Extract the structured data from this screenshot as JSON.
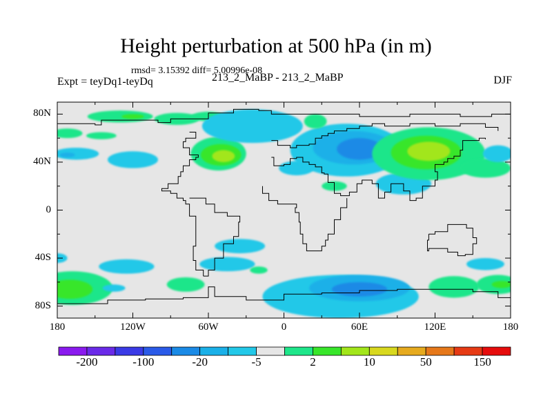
{
  "title": "Height perturbation at 500 hPa (in m)",
  "stats_line": "rmsd= 3.15392 diff= 5.00996e-08",
  "left_label": "Expt = teyDq1-teyDq",
  "center_label": "213_2_MaBP - 213_2_MaBP",
  "right_label": "DJF",
  "colors": {
    "background_fill": "#e6e6e6",
    "coastline": "#000000",
    "levels": [
      "#8a1aee",
      "#6a2ae8",
      "#3a3ae6",
      "#2a5ae8",
      "#1a8ae6",
      "#1ab0e8",
      "#22c8e8",
      "#e6e6e6",
      "#1ee68a",
      "#38e62a",
      "#a2e61a",
      "#d8d81e",
      "#e6aa1e",
      "#e6781a",
      "#e63a14",
      "#e60c0c"
    ]
  },
  "chart_data": {
    "type": "contour_map",
    "title": "Height perturbation at 500 hPa (in m)",
    "projection": "cylindrical equidistant",
    "xlim": [
      -180,
      180
    ],
    "ylim": [
      -90,
      90
    ],
    "x_ticks": [
      {
        "value": -180,
        "label": "180"
      },
      {
        "value": -120,
        "label": "120W"
      },
      {
        "value": -60,
        "label": "60W"
      },
      {
        "value": 0,
        "label": "0"
      },
      {
        "value": 60,
        "label": "60E"
      },
      {
        "value": 120,
        "label": "120E"
      },
      {
        "value": 180,
        "label": "180"
      }
    ],
    "y_ticks": [
      {
        "value": 80,
        "label": "80N"
      },
      {
        "value": 40,
        "label": "40N"
      },
      {
        "value": 0,
        "label": "0"
      },
      {
        "value": -40,
        "label": "40S"
      },
      {
        "value": -80,
        "label": "80S"
      }
    ],
    "colorbar": {
      "n_boxes": 16,
      "labels": [
        {
          "boundary": 1,
          "label": "-200"
        },
        {
          "boundary": 3,
          "label": "-100"
        },
        {
          "boundary": 5,
          "label": "-20"
        },
        {
          "boundary": 7,
          "label": "-5"
        },
        {
          "boundary": 9,
          "label": "2"
        },
        {
          "boundary": 11,
          "label": "10"
        },
        {
          "boundary": 13,
          "label": "50"
        },
        {
          "boundary": 15,
          "label": "150"
        }
      ]
    },
    "regions": [
      {
        "sign": "positive",
        "level": 8,
        "lon": -130,
        "lat": 78,
        "rlon": 26,
        "rlat": 5
      },
      {
        "sign": "positive",
        "level": 9,
        "lon": -120,
        "lat": 78,
        "rlon": 9,
        "rlat": 2
      },
      {
        "sign": "positive",
        "level": 8,
        "lon": -85,
        "lat": 76,
        "rlon": 18,
        "rlat": 5
      },
      {
        "sign": "positive",
        "level": 8,
        "lon": -60,
        "lat": 78,
        "rlon": 14,
        "rlat": 4
      },
      {
        "sign": "positive",
        "level": 8,
        "lon": -172,
        "lat": 64,
        "rlon": 12,
        "rlat": 4
      },
      {
        "sign": "positive",
        "level": 8,
        "lon": -145,
        "lat": 62,
        "rlon": 12,
        "rlat": 3
      },
      {
        "sign": "negative",
        "level": 6,
        "lon": -165,
        "lat": 47,
        "rlon": 18,
        "rlat": 5
      },
      {
        "sign": "negative",
        "level": 5,
        "lon": -172,
        "lat": 46,
        "rlon": 6,
        "rlat": 2
      },
      {
        "sign": "negative",
        "level": 6,
        "lon": -120,
        "lat": 42,
        "rlon": 20,
        "rlat": 7
      },
      {
        "sign": "positive",
        "level": 8,
        "lon": -52,
        "lat": 47,
        "rlon": 22,
        "rlat": 14
      },
      {
        "sign": "positive",
        "level": 9,
        "lon": -50,
        "lat": 46,
        "rlon": 16,
        "rlat": 9
      },
      {
        "sign": "positive",
        "level": 10,
        "lon": -48,
        "lat": 45,
        "rlon": 9,
        "rlat": 5
      },
      {
        "sign": "negative",
        "level": 6,
        "lon": -25,
        "lat": 70,
        "rlon": 40,
        "rlat": 14
      },
      {
        "sign": "negative",
        "level": 6,
        "lon": 10,
        "lat": 35,
        "rlon": 14,
        "rlat": 6
      },
      {
        "sign": "negative",
        "level": 6,
        "lon": 50,
        "lat": 50,
        "rlon": 45,
        "rlat": 22
      },
      {
        "sign": "negative",
        "level": 5,
        "lon": 55,
        "lat": 52,
        "rlon": 32,
        "rlat": 14
      },
      {
        "sign": "negative",
        "level": 4,
        "lon": 60,
        "lat": 51,
        "rlon": 18,
        "rlat": 9
      },
      {
        "sign": "negative",
        "level": 6,
        "lon": 95,
        "lat": 22,
        "rlon": 22,
        "rlat": 9
      },
      {
        "sign": "positive",
        "level": 8,
        "lon": 40,
        "lat": 20,
        "rlon": 10,
        "rlat": 4
      },
      {
        "sign": "positive",
        "level": 8,
        "lon": 25,
        "lat": 74,
        "rlon": 9,
        "rlat": 6
      },
      {
        "sign": "positive",
        "level": 8,
        "lon": 115,
        "lat": 47,
        "rlon": 45,
        "rlat": 22
      },
      {
        "sign": "positive",
        "level": 9,
        "lon": 113,
        "lat": 48,
        "rlon": 28,
        "rlat": 14
      },
      {
        "sign": "positive",
        "level": 10,
        "lon": 115,
        "lat": 49,
        "rlon": 17,
        "rlat": 8
      },
      {
        "sign": "positive",
        "level": 8,
        "lon": 160,
        "lat": 35,
        "rlon": 20,
        "rlat": 8
      },
      {
        "sign": "negative",
        "level": 6,
        "lon": 170,
        "lat": 47,
        "rlon": 12,
        "rlat": 7
      },
      {
        "sign": "negative",
        "level": 6,
        "lon": -35,
        "lat": -30,
        "rlon": 20,
        "rlat": 6
      },
      {
        "sign": "negative",
        "level": 6,
        "lon": -180,
        "lat": -40,
        "rlon": 8,
        "rlat": 4
      },
      {
        "sign": "negative",
        "level": 6,
        "lon": -125,
        "lat": -47,
        "rlon": 22,
        "rlat": 6
      },
      {
        "sign": "positive",
        "level": 8,
        "lon": -168,
        "lat": -65,
        "rlon": 32,
        "rlat": 14
      },
      {
        "sign": "positive",
        "level": 9,
        "lon": -170,
        "lat": -66,
        "rlon": 18,
        "rlat": 8
      },
      {
        "sign": "negative",
        "level": 6,
        "lon": -135,
        "lat": -65,
        "rlon": 9,
        "rlat": 3
      },
      {
        "sign": "positive",
        "level": 8,
        "lon": -78,
        "lat": -62,
        "rlon": 15,
        "rlat": 6
      },
      {
        "sign": "negative",
        "level": 6,
        "lon": -45,
        "lat": -45,
        "rlon": 22,
        "rlat": 6
      },
      {
        "sign": "positive",
        "level": 8,
        "lon": -20,
        "lat": -50,
        "rlon": 7,
        "rlat": 3
      },
      {
        "sign": "negative",
        "level": 6,
        "lon": 45,
        "lat": -72,
        "rlon": 62,
        "rlat": 18
      },
      {
        "sign": "negative",
        "level": 5,
        "lon": 60,
        "lat": -65,
        "rlon": 40,
        "rlat": 11
      },
      {
        "sign": "negative",
        "level": 4,
        "lon": 60,
        "lat": -66,
        "rlon": 22,
        "rlat": 6
      },
      {
        "sign": "positive",
        "level": 8,
        "lon": 135,
        "lat": -64,
        "rlon": 20,
        "rlat": 9
      },
      {
        "sign": "negative",
        "level": 6,
        "lon": 160,
        "lat": -45,
        "rlon": 15,
        "rlat": 5
      },
      {
        "sign": "positive",
        "level": 8,
        "lon": 170,
        "lat": -62,
        "rlon": 17,
        "rlat": 8
      },
      {
        "sign": "positive",
        "level": 9,
        "lon": 173,
        "lat": -62,
        "rlon": 8,
        "rlat": 3
      }
    ],
    "coastlines": [
      [
        [
          -180,
          72
        ],
        [
          -165,
          72
        ],
        [
          -150,
          71
        ],
        [
          -145,
          75
        ],
        [
          -120,
          75
        ],
        [
          -100,
          73
        ],
        [
          -90,
          76
        ],
        [
          -70,
          76
        ],
        [
          -60,
          81
        ],
        [
          -40,
          84
        ],
        [
          -20,
          83
        ],
        [
          -10,
          80
        ],
        [
          20,
          80
        ],
        [
          60,
          78
        ],
        [
          100,
          80
        ],
        [
          140,
          78
        ],
        [
          165,
          80
        ],
        [
          180,
          81
        ]
      ],
      [
        [
          -75,
          65
        ],
        [
          -70,
          60
        ],
        [
          -78,
          57
        ],
        [
          -80,
          52
        ],
        [
          -75,
          46
        ],
        [
          -68,
          44
        ],
        [
          -70,
          42
        ],
        [
          -75,
          37
        ],
        [
          -80,
          32
        ],
        [
          -82,
          28
        ],
        [
          -84,
          22
        ],
        [
          -92,
          18
        ],
        [
          -97,
          16
        ],
        [
          -90,
          14
        ],
        [
          -85,
          10
        ],
        [
          -80,
          8
        ],
        [
          -78,
          5
        ],
        [
          -75,
          -5
        ],
        [
          -70,
          -20
        ],
        [
          -70,
          -30
        ],
        [
          -72,
          -42
        ],
        [
          -70,
          -50
        ],
        [
          -64,
          -55
        ]
      ],
      [
        [
          -64,
          -55
        ],
        [
          -60,
          -50
        ],
        [
          -55,
          -40
        ],
        [
          -48,
          -28
        ],
        [
          -40,
          -22
        ],
        [
          -36,
          -10
        ],
        [
          -35,
          -5
        ],
        [
          -45,
          -2
        ],
        [
          -55,
          5
        ],
        [
          -62,
          10
        ],
        [
          -75,
          10
        ]
      ],
      [
        [
          -10,
          58
        ],
        [
          -5,
          54
        ],
        [
          5,
          52
        ],
        [
          10,
          54
        ],
        [
          20,
          55
        ],
        [
          25,
          60
        ],
        [
          30,
          62
        ],
        [
          35,
          64
        ],
        [
          40,
          66
        ],
        [
          50,
          68
        ],
        [
          60,
          70
        ],
        [
          70,
          72
        ],
        [
          80,
          70
        ],
        [
          100,
          72
        ],
        [
          120,
          70
        ],
        [
          140,
          72
        ],
        [
          160,
          69
        ],
        [
          170,
          66
        ]
      ],
      [
        [
          -10,
          44
        ],
        [
          -8,
          37
        ],
        [
          0,
          38
        ],
        [
          5,
          43
        ],
        [
          10,
          44
        ],
        [
          15,
          40
        ],
        [
          20,
          38
        ],
        [
          25,
          36
        ],
        [
          30,
          31
        ],
        [
          32,
          30
        ],
        [
          35,
          23
        ],
        [
          40,
          14
        ],
        [
          45,
          12
        ],
        [
          52,
          15
        ],
        [
          58,
          22
        ],
        [
          62,
          25
        ],
        [
          70,
          22
        ],
        [
          75,
          10
        ],
        [
          80,
          15
        ],
        [
          85,
          22
        ],
        [
          90,
          22
        ],
        [
          95,
          16
        ],
        [
          100,
          8
        ],
        [
          105,
          10
        ],
        [
          110,
          20
        ],
        [
          120,
          25
        ],
        [
          122,
          32
        ],
        [
          120,
          38
        ],
        [
          127,
          40
        ],
        [
          130,
          43
        ],
        [
          135,
          45
        ],
        [
          140,
          50
        ],
        [
          142,
          58
        ],
        [
          155,
          60
        ],
        [
          160,
          59
        ]
      ],
      [
        [
          -17,
          20
        ],
        [
          -17,
          14
        ],
        [
          -12,
          8
        ],
        [
          -5,
          5
        ],
        [
          5,
          5
        ],
        [
          10,
          2
        ],
        [
          9,
          -2
        ],
        [
          12,
          -10
        ],
        [
          13,
          -20
        ],
        [
          15,
          -28
        ],
        [
          18,
          -34
        ],
        [
          25,
          -34
        ],
        [
          30,
          -30
        ],
        [
          33,
          -25
        ],
        [
          35,
          -20
        ],
        [
          40,
          -15
        ],
        [
          40,
          -8
        ],
        [
          45,
          2
        ],
        [
          50,
          10
        ]
      ],
      [
        [
          115,
          -20
        ],
        [
          120,
          -18
        ],
        [
          130,
          -12
        ],
        [
          140,
          -12
        ],
        [
          145,
          -15
        ],
        [
          150,
          -23
        ],
        [
          153,
          -28
        ],
        [
          150,
          -37
        ],
        [
          144,
          -38
        ],
        [
          138,
          -35
        ],
        [
          130,
          -32
        ],
        [
          115,
          -34
        ],
        [
          114,
          -25
        ],
        [
          115,
          -20
        ]
      ],
      [
        [
          -180,
          -78
        ],
        [
          -160,
          -78
        ],
        [
          -140,
          -75
        ],
        [
          -110,
          -74
        ],
        [
          -80,
          -73
        ],
        [
          -60,
          -64
        ],
        [
          -55,
          -72
        ],
        [
          -30,
          -75
        ],
        [
          0,
          -70
        ],
        [
          30,
          -69
        ],
        [
          60,
          -67
        ],
        [
          90,
          -66
        ],
        [
          120,
          -66
        ],
        [
          150,
          -68
        ],
        [
          170,
          -73
        ],
        [
          180,
          -78
        ]
      ]
    ]
  }
}
